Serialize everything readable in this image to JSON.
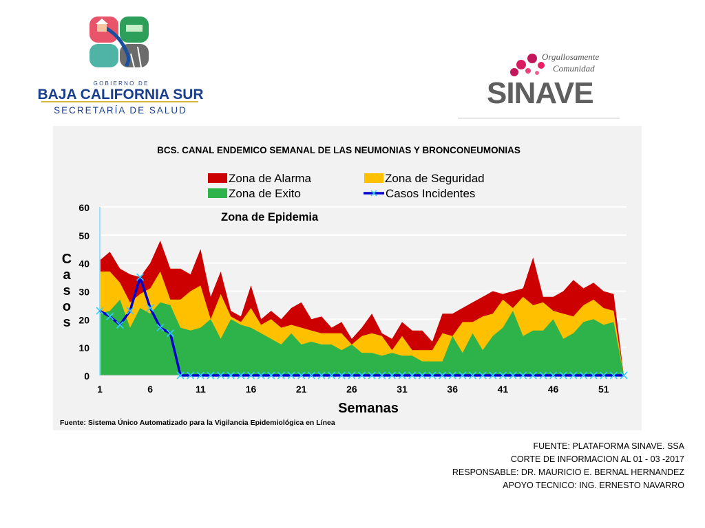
{
  "header": {
    "gobierno_text": "G O B I E R N O   D E",
    "state_name": "BAJA CALIFORNIA SUR",
    "department": "SECRETARÍA DE SALUD",
    "sinave_tagline_1": "Orgullosamente",
    "sinave_tagline_2": "Comunidad",
    "sinave_name": "SINAVE"
  },
  "colors": {
    "alarma": "#cc0000",
    "seguridad": "#ffc000",
    "exito": "#2db34a",
    "casos": "#0000cc",
    "marker": "#33ccff"
  },
  "chart_data": {
    "type": "area",
    "title": "BCS. CANAL ENDEMICO SEMANAL DE LAS NEUMONIAS Y BRONCONEUMONIAS",
    "epidemic_label": "Zona de Epidemia",
    "xlabel": "Semanas",
    "ylabel": "C\na\ns\no\ns",
    "ylim": [
      0,
      60
    ],
    "yticks": [
      0,
      10,
      20,
      30,
      40,
      50,
      60
    ],
    "xtick_labels": [
      "1",
      "6",
      "11",
      "16",
      "21",
      "26",
      "31",
      "36",
      "41",
      "46",
      "51"
    ],
    "weeks": [
      1,
      2,
      3,
      4,
      5,
      6,
      7,
      8,
      9,
      10,
      11,
      12,
      13,
      14,
      15,
      16,
      17,
      18,
      19,
      20,
      21,
      22,
      23,
      24,
      25,
      26,
      27,
      28,
      29,
      30,
      31,
      32,
      33,
      34,
      35,
      36,
      37,
      38,
      39,
      40,
      41,
      42,
      43,
      44,
      45,
      46,
      47,
      48,
      49,
      50,
      51,
      52,
      53
    ],
    "series": [
      {
        "name": "Zona de Alarma",
        "values": [
          41,
          44,
          38,
          36,
          35,
          40,
          48,
          38,
          38,
          36,
          45,
          28,
          37,
          23,
          21,
          32,
          20,
          23,
          20,
          24,
          26,
          20,
          21,
          17,
          19,
          13,
          17,
          22,
          15,
          13,
          19,
          16,
          16,
          12,
          22,
          22,
          24,
          26,
          28,
          30,
          29,
          30,
          31,
          42,
          28,
          28,
          30,
          34,
          31,
          33,
          30,
          29,
          0
        ]
      },
      {
        "name": "Zona de Seguridad",
        "values": [
          37,
          37,
          33,
          26,
          29,
          31,
          37,
          27,
          27,
          30,
          32,
          20,
          29,
          21,
          19,
          24,
          18,
          20,
          17,
          18,
          17,
          16,
          15,
          15,
          15,
          11,
          14,
          15,
          14,
          9,
          14,
          9,
          9,
          9,
          15,
          14,
          19,
          19,
          21,
          22,
          27,
          24,
          28,
          25,
          26,
          23,
          22,
          21,
          25,
          27,
          24,
          23,
          0
        ]
      },
      {
        "name": "Zona de Exito",
        "values": [
          22,
          23,
          27,
          17,
          24,
          22,
          26,
          25,
          17,
          16,
          17,
          20,
          13,
          20,
          18,
          17,
          15,
          13,
          11,
          15,
          11,
          12,
          11,
          11,
          9,
          11,
          8,
          8,
          7,
          8,
          7,
          7,
          5,
          5,
          5,
          14,
          8,
          15,
          9,
          14,
          17,
          23,
          14,
          16,
          16,
          20,
          13,
          15,
          19,
          20,
          18,
          19,
          0
        ]
      },
      {
        "name": "Casos Incidentes",
        "values": [
          23,
          21,
          18,
          23,
          35,
          24,
          17,
          15,
          0,
          0,
          0,
          0,
          0,
          0,
          0,
          0,
          0,
          0,
          0,
          0,
          0,
          0,
          0,
          0,
          0,
          0,
          0,
          0,
          0,
          0,
          0,
          0,
          0,
          0,
          0,
          0,
          0,
          0,
          0,
          0,
          0,
          0,
          0,
          0,
          0,
          0,
          0,
          0,
          0,
          0,
          0,
          0,
          0
        ]
      }
    ],
    "source_note": "Fuente: Sistema Único Automatizado para la Vigilancia Epidemiológica en Línea"
  },
  "credits": [
    "FUENTE: PLATAFORMA SINAVE. SSA",
    "CORTE DE INFORMACION AL  01 - 03 -2017",
    "RESPONSABLE: DR. MAURICIO E. BERNAL HERNANDEZ",
    "APOYO TECNICO: ING. ERNESTO NAVARRO"
  ]
}
